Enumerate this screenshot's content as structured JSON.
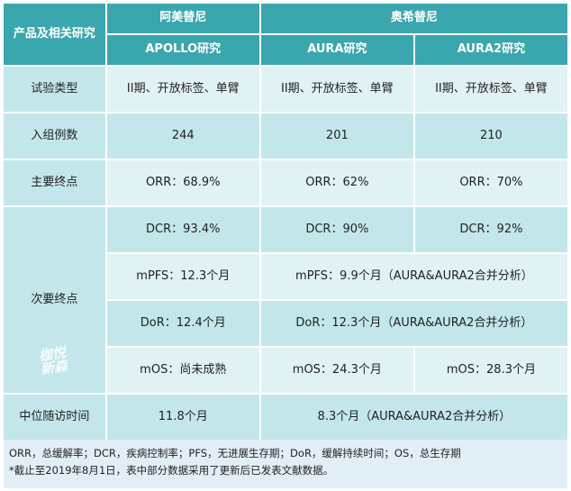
{
  "header": {
    "product_label": "产品及相关研究",
    "drug_a": "阿美替尼",
    "drug_b": "奥希替尼",
    "study_apollo": "APOLLO研究",
    "study_aura": "AURA研究",
    "study_aura2": "AURA2研究"
  },
  "rows": {
    "trial_type": {
      "label": "试验类型",
      "apollo": "II期、开放标签、单臂",
      "aura": "II期、开放标签、单臂",
      "aura2": "II期、开放标签、单臂"
    },
    "enrollment": {
      "label": "入组例数",
      "apollo": "244",
      "aura": "201",
      "aura2": "210"
    },
    "primary": {
      "label": "主要终点",
      "apollo": "ORR：68.9%",
      "aura": "ORR：62%",
      "aura2": "ORR：70%"
    },
    "secondary": {
      "label": "次要终点",
      "dcr": {
        "apollo": "DCR：93.4%",
        "aura": "DCR：90%",
        "aura2": "DCR：92%"
      },
      "mpfs": {
        "apollo": "mPFS：12.3个月",
        "aura_merged": "mPFS：9.9个月（AURA&AURA2合并分析）"
      },
      "dor": {
        "apollo": "DoR：12.4个月",
        "aura_merged": "DoR：12.3个月（AURA&AURA2合并分析）"
      },
      "mos": {
        "apollo": "mOS：尚未成熟",
        "aura": "mOS：24.3个月",
        "aura2": "mOS：28.3个月"
      }
    },
    "followup": {
      "label": "中位随访时间",
      "apollo": "11.8个月",
      "aura_merged": "8.3个月（AURA&AURA2合并分析）"
    }
  },
  "footer": {
    "line1": "ORR，总缓解率；DCR，疾病控制率；PFS，无进展生存期；DoR，缓解持续时间；OS，总生存期",
    "line2": "*截止至2019年8月1日，表中部分数据采用了更新后已发表文献数据。"
  },
  "watermark": {
    "line1": "枷悦",
    "line2": "新森"
  },
  "colors": {
    "header": "#3aa6ad",
    "row_dark": "#c3e6ea",
    "row_light": "#e0f2f4",
    "footer": "#e2eef6"
  }
}
